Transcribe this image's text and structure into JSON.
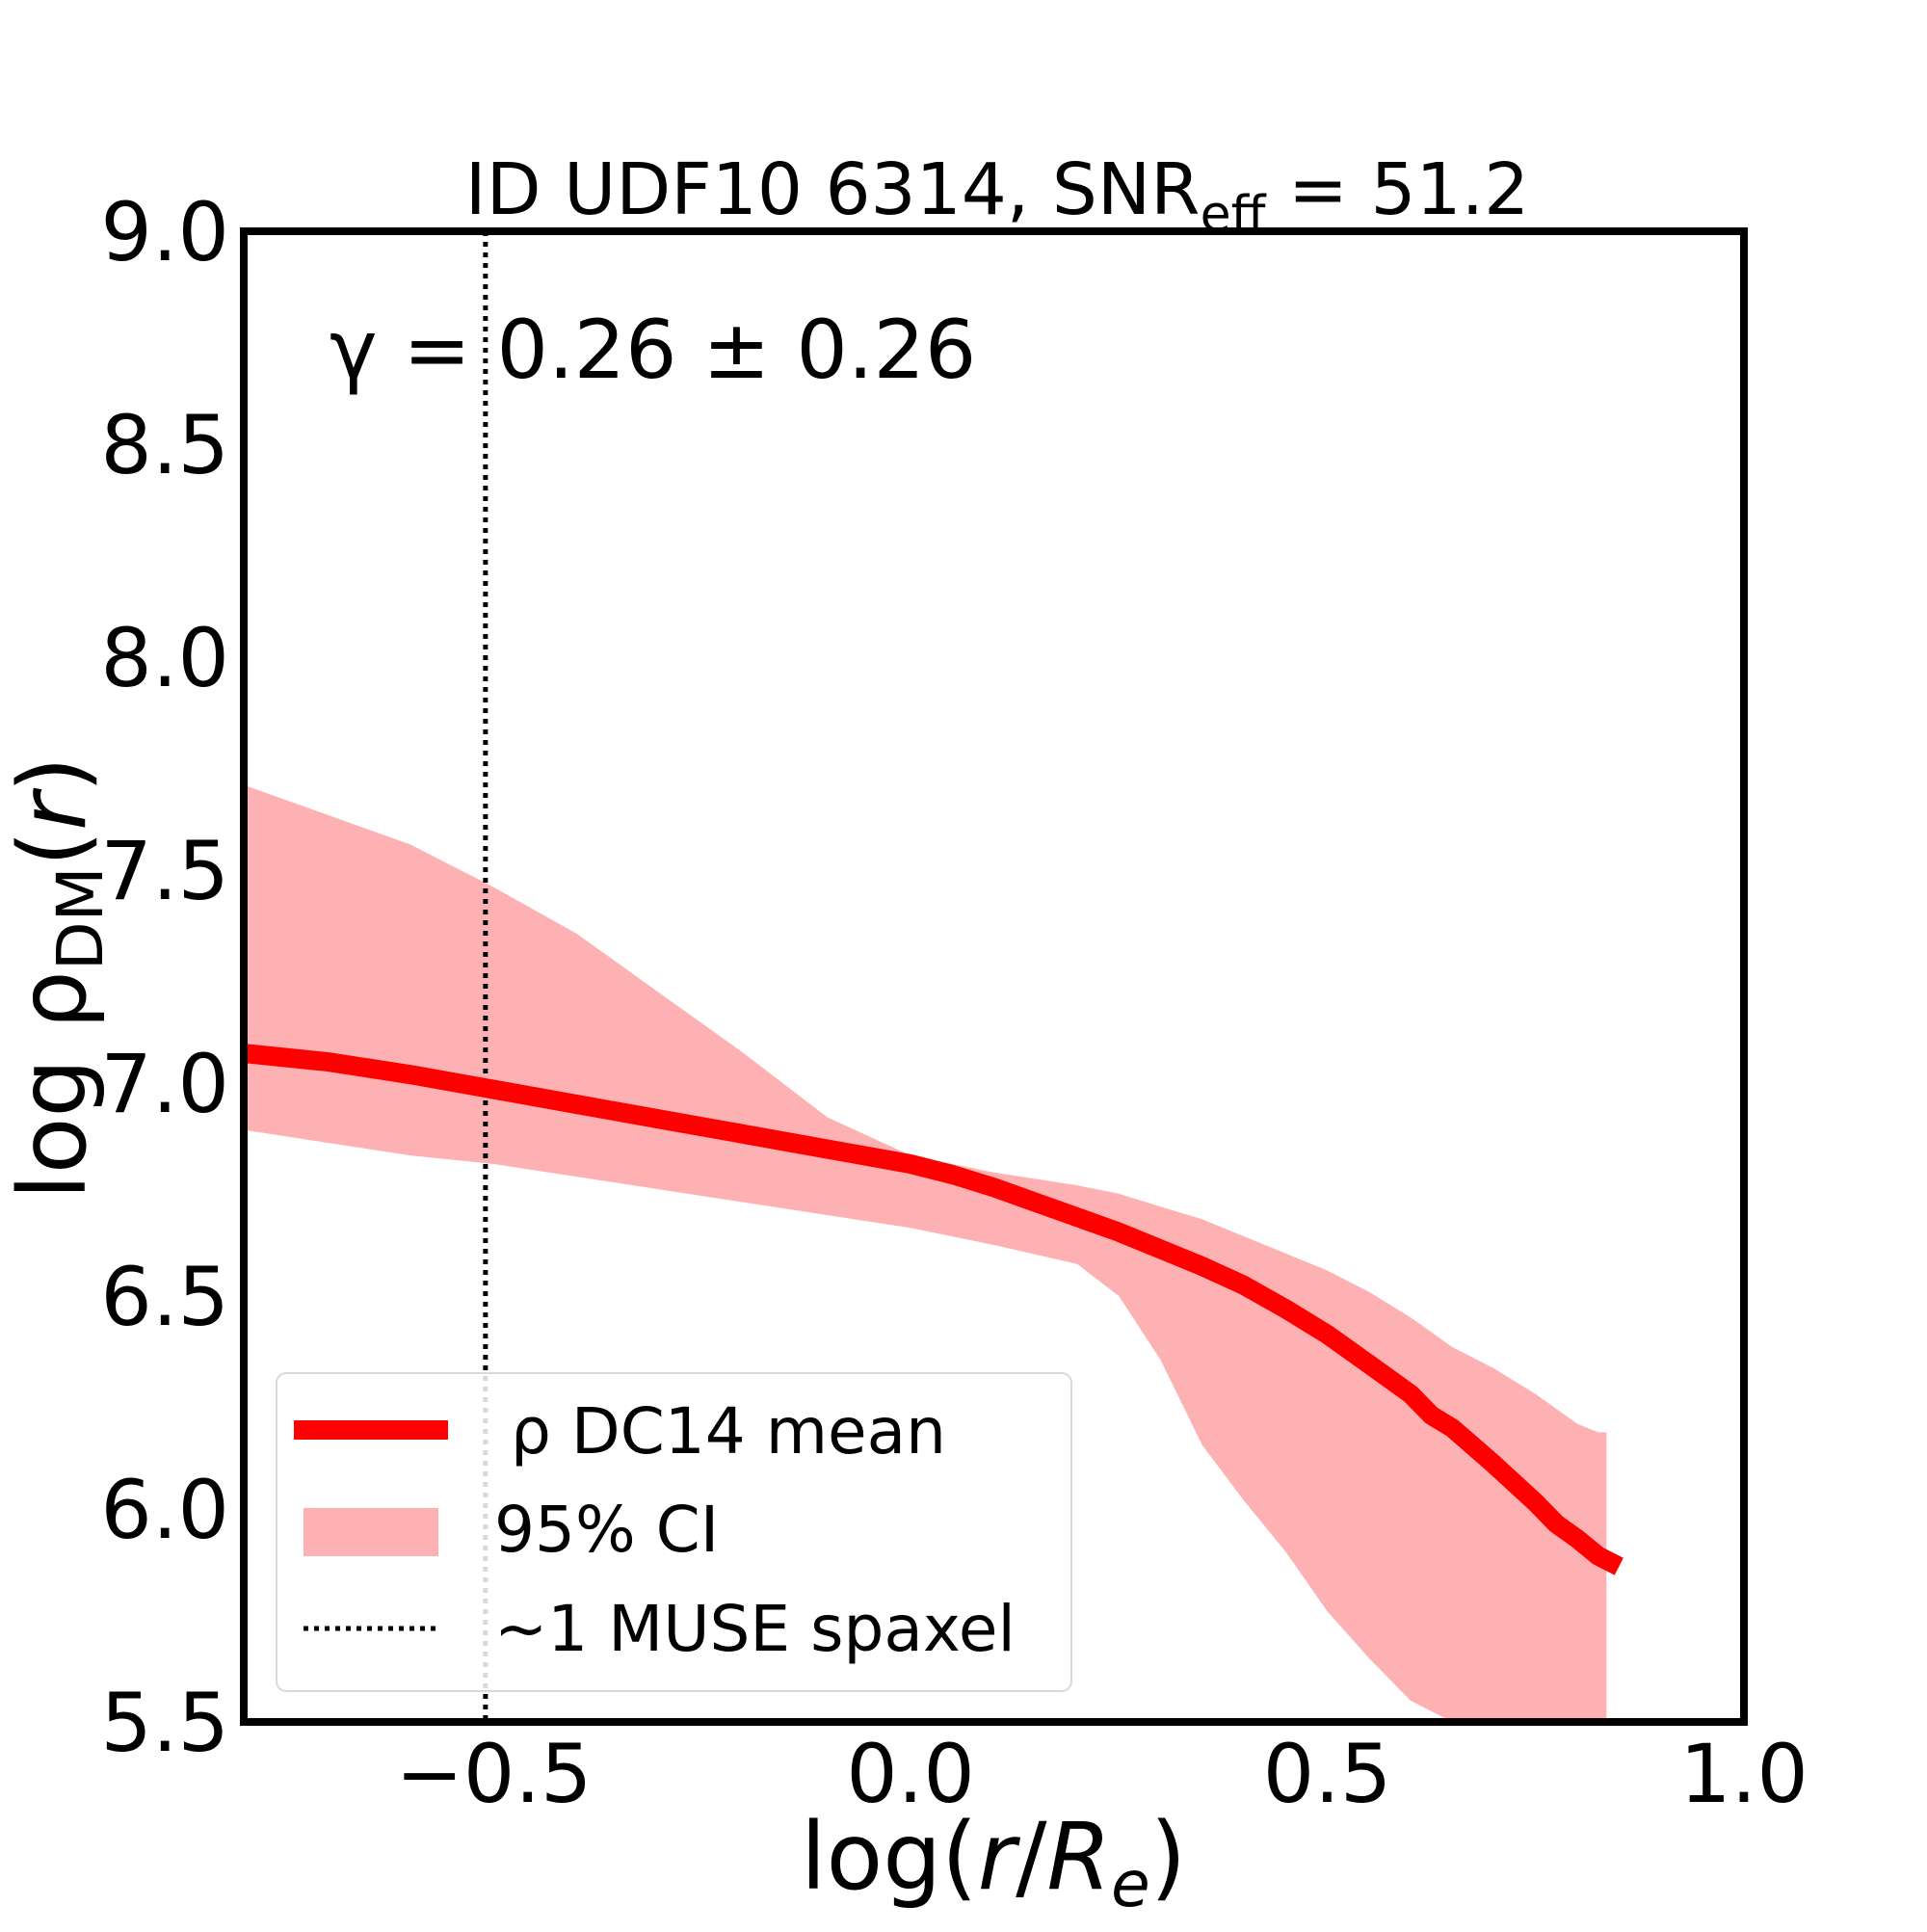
{
  "chart_data": {
    "type": "line",
    "title_prefix": "ID UDF10 6314, SNR",
    "title_subscript": "eff",
    "title_suffix": " = 51.2",
    "annotation": "γ = 0.26 ± 0.26",
    "xlabel_parts": [
      "log(",
      "r",
      "/",
      "R",
      "e",
      ")"
    ],
    "ylabel_parts": [
      "log ρ",
      "DM",
      "(",
      "r",
      ")"
    ],
    "xlim": [
      -0.8,
      1.0
    ],
    "ylim": [
      5.5,
      9.0
    ],
    "x_ticks": [
      {
        "value": -0.5,
        "label": "−0.5"
      },
      {
        "value": 0.0,
        "label": "0.0"
      },
      {
        "value": 0.5,
        "label": "0.5"
      },
      {
        "value": 1.0,
        "label": "1.0"
      }
    ],
    "y_ticks": [
      {
        "value": 5.5,
        "label": "5.5"
      },
      {
        "value": 6.0,
        "label": "6.0"
      },
      {
        "value": 6.5,
        "label": "6.5"
      },
      {
        "value": 7.0,
        "label": "7.0"
      },
      {
        "value": 7.5,
        "label": "7.5"
      },
      {
        "value": 8.0,
        "label": "8.0"
      },
      {
        "value": 8.5,
        "label": "8.5"
      },
      {
        "value": 9.0,
        "label": "9.0"
      }
    ],
    "grid": false,
    "legend_position": "lower-left",
    "colors": {
      "mean_line": "#ff0000",
      "ci_fill": "#fdb1b3",
      "vline": "#000000"
    },
    "series": [
      {
        "name": "ρ DC14 mean",
        "kind": "line",
        "x": [
          -0.8,
          -0.7,
          -0.6,
          -0.5,
          -0.4,
          -0.3,
          -0.2,
          -0.1,
          0.0,
          0.05,
          0.1,
          0.15,
          0.2,
          0.25,
          0.3,
          0.35,
          0.4,
          0.45,
          0.5,
          0.55,
          0.6,
          0.625,
          0.65,
          0.7,
          0.75,
          0.775,
          0.8,
          0.825,
          0.85
        ],
        "y": [
          7.07,
          7.05,
          7.02,
          6.985,
          6.95,
          6.915,
          6.88,
          6.845,
          6.81,
          6.785,
          6.755,
          6.72,
          6.685,
          6.65,
          6.61,
          6.57,
          6.525,
          6.47,
          6.41,
          6.34,
          6.27,
          6.22,
          6.19,
          6.105,
          6.015,
          5.965,
          5.93,
          5.89,
          5.865
        ]
      },
      {
        "name": "95% CI",
        "kind": "band",
        "x": [
          -0.8,
          -0.7,
          -0.6,
          -0.5,
          -0.4,
          -0.3,
          -0.2,
          -0.1,
          0.0,
          0.1,
          0.2,
          0.25,
          0.3,
          0.35,
          0.4,
          0.45,
          0.5,
          0.55,
          0.6,
          0.65,
          0.7,
          0.75,
          0.8,
          0.825,
          0.835
        ],
        "upper": [
          7.7,
          7.63,
          7.56,
          7.46,
          7.35,
          7.21,
          7.07,
          6.92,
          6.83,
          6.79,
          6.76,
          6.74,
          6.71,
          6.68,
          6.64,
          6.6,
          6.56,
          6.51,
          6.45,
          6.38,
          6.33,
          6.27,
          6.2,
          6.18,
          6.18
        ],
        "lower": [
          6.89,
          6.86,
          6.83,
          6.81,
          6.78,
          6.75,
          6.72,
          6.69,
          6.66,
          6.62,
          6.575,
          6.5,
          6.35,
          6.15,
          6.02,
          5.9,
          5.76,
          5.65,
          5.55,
          5.5,
          5.5,
          5.5,
          5.5,
          5.5,
          5.5
        ]
      },
      {
        "name": "~1 MUSE spaxel",
        "kind": "vline",
        "x": -0.51
      }
    ]
  }
}
